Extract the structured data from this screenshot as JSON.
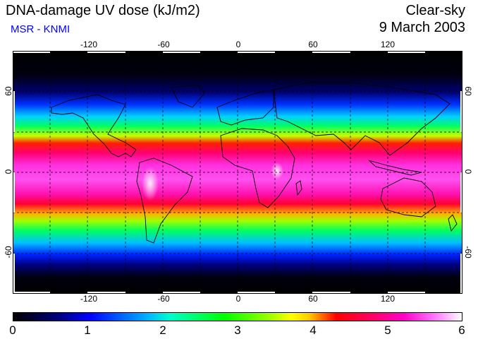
{
  "header": {
    "title": "DNA-damage UV dose (kJ/m2)",
    "subtitle": "MSR - KNMI",
    "condition": "Clear-sky",
    "date": "9 March 2003"
  },
  "map": {
    "lon_ticks": [
      "-120",
      "-60",
      "0",
      "60",
      "120"
    ],
    "lat_ticks": [
      "60",
      "0",
      "-60"
    ],
    "grid": true,
    "gridline_style": "dashed",
    "coastlines": true,
    "colors": {
      "polar": "#000000",
      "mid": "#0040ff",
      "band1": "#00ff40",
      "band2": "#ff0000",
      "equator": "#ff40ff",
      "peak": "#ffffff"
    }
  },
  "colorbar": {
    "labels": [
      "0",
      "1",
      "2",
      "3",
      "4",
      "5",
      "6"
    ],
    "min": 0,
    "max": 6
  }
}
